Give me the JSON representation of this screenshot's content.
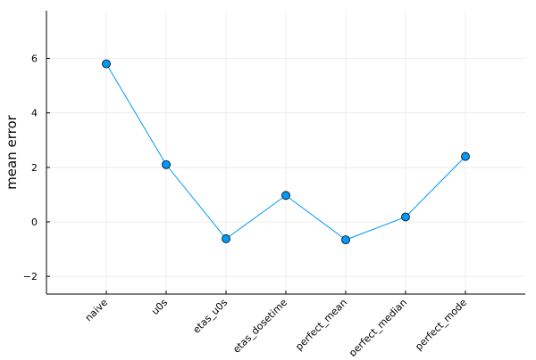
{
  "chart_data": {
    "type": "line",
    "title": "",
    "xlabel": "",
    "ylabel": "mean error",
    "categories": [
      "naive",
      "u0s",
      "etas_u0s",
      "etas_dosetime",
      "perfect_mean",
      "perfect_median",
      "perfect_mode"
    ],
    "series": [
      {
        "name": "mean error",
        "values": [
          5.8,
          2.1,
          -0.62,
          0.97,
          -0.66,
          0.18,
          2.4
        ],
        "color": "#009AFA",
        "marker": "circle"
      }
    ],
    "ylim": [
      -2.65,
      7.75
    ],
    "yticks": [
      -2,
      0,
      2,
      4,
      6
    ],
    "grid": true,
    "legend": "none"
  },
  "colors": {
    "line": "#009AFA",
    "marker_fill": "#009AFA",
    "marker_stroke": "#000000",
    "axis": "#000000",
    "grid": "#ececec"
  }
}
